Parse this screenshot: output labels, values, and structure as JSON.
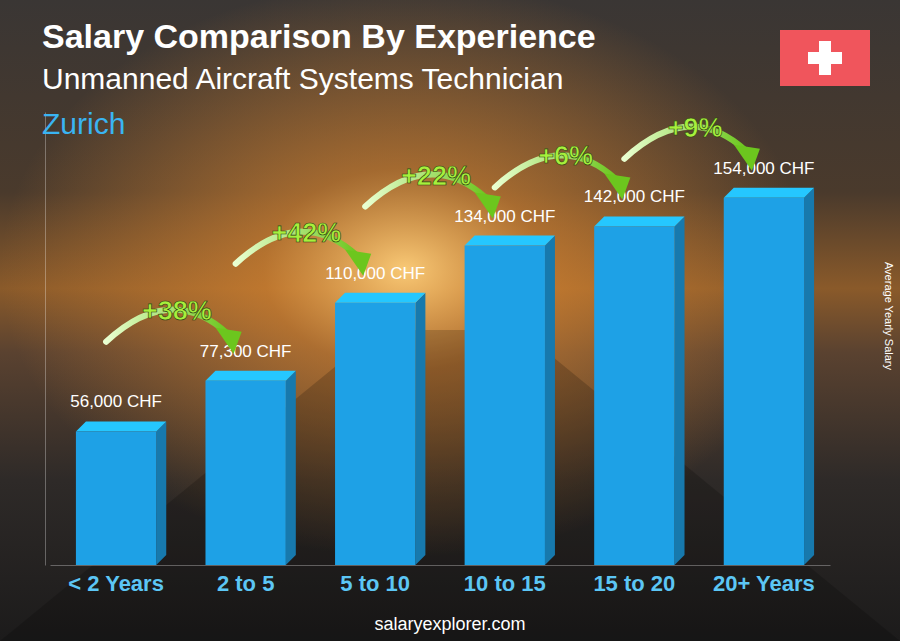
{
  "chart_data": {
    "type": "bar",
    "title": "Salary Comparison By Experience",
    "subtitle": "Unmanned Aircraft Systems Technician",
    "location": "Zurich",
    "ylabel": "Average Yearly Salary",
    "source": "salaryexplorer.com",
    "categories": [
      "< 2 Years",
      "2 to 5",
      "5 to 10",
      "10 to 15",
      "15 to 20",
      "20+ Years"
    ],
    "values": [
      56000,
      77300,
      110000,
      134000,
      142000,
      154000
    ],
    "value_labels": [
      "56,000 CHF",
      "77,300 CHF",
      "110,000 CHF",
      "134,000 CHF",
      "142,000 CHF",
      "154,000 CHF"
    ],
    "annotations": [
      "+38%",
      "+42%",
      "+22%",
      "+6%",
      "+9%"
    ],
    "color": "#1ea1e6",
    "ylim": [
      0,
      190000
    ],
    "yticks": [],
    "grid": false,
    "data_labels": true,
    "tick_labels": "x"
  }
}
